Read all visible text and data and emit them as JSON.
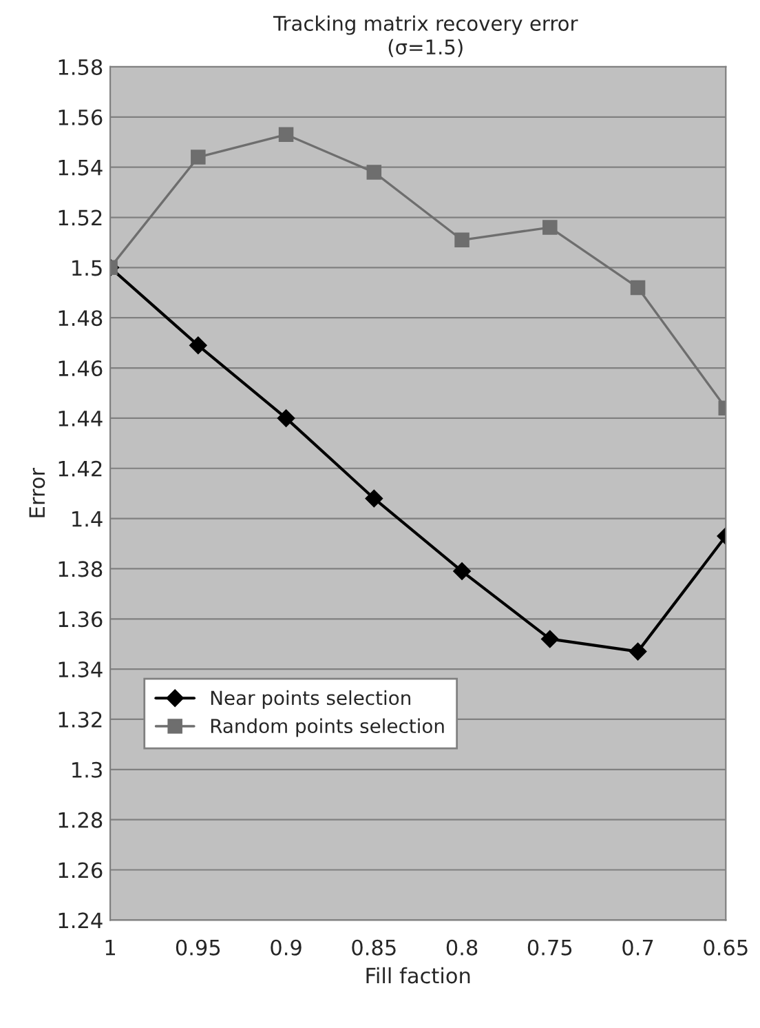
{
  "chart_data": {
    "type": "line",
    "title": "Tracking matrix recovery error",
    "subtitle": "(σ=1.5)",
    "xlabel": "Fill faction",
    "ylabel": "Error",
    "x": [
      1,
      0.95,
      0.9,
      0.85,
      0.8,
      0.75,
      0.7,
      0.65
    ],
    "xlim": [
      1,
      0.65
    ],
    "xticks": [
      1,
      0.95,
      0.9,
      0.85,
      0.8,
      0.75,
      0.7,
      0.65
    ],
    "ylim": [
      1.24,
      1.58
    ],
    "yticks": [
      1.24,
      1.26,
      1.28,
      1.3,
      1.32,
      1.34,
      1.36,
      1.38,
      1.4,
      1.42,
      1.44,
      1.46,
      1.48,
      1.5,
      1.52,
      1.54,
      1.56,
      1.58
    ],
    "grid": "y",
    "legend": "bottom left",
    "line_style": "solid",
    "series": [
      {
        "name": "Near points selection",
        "color": "#000000",
        "marker": "diamond",
        "values": [
          1.5,
          1.469,
          1.44,
          1.408,
          1.379,
          1.352,
          1.347,
          1.393
        ]
      },
      {
        "name": "Random points selection",
        "color": "#6e6e6e",
        "marker": "square",
        "values": [
          1.5,
          1.544,
          1.553,
          1.538,
          1.511,
          1.516,
          1.492,
          1.444
        ]
      }
    ]
  }
}
